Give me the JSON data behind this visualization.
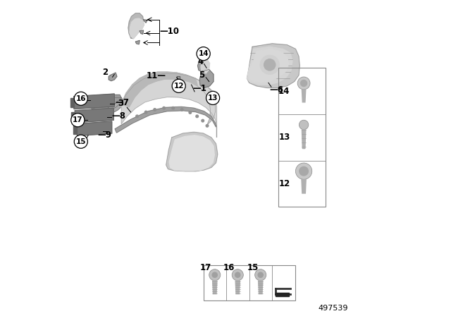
{
  "bg_color": "#ffffff",
  "part_number": "497539",
  "gray1": "#b8b8b8",
  "gray2": "#c8c8c8",
  "gray3": "#d5d5d5",
  "gray4": "#a0a0a0",
  "gray5": "#909090",
  "gray6": "#787878",
  "gray7": "#606060",
  "label_fs": 8.5,
  "circled": [
    "12",
    "13",
    "14",
    "15",
    "16",
    "17"
  ],
  "box_labels": {
    "14": [
      0.685,
      0.295
    ],
    "13": [
      0.685,
      0.445
    ],
    "12": [
      0.685,
      0.595
    ]
  },
  "bottom_screws": {
    "17": [
      0.465,
      0.87
    ],
    "16": [
      0.558,
      0.87
    ],
    "15": [
      0.64,
      0.87
    ]
  }
}
